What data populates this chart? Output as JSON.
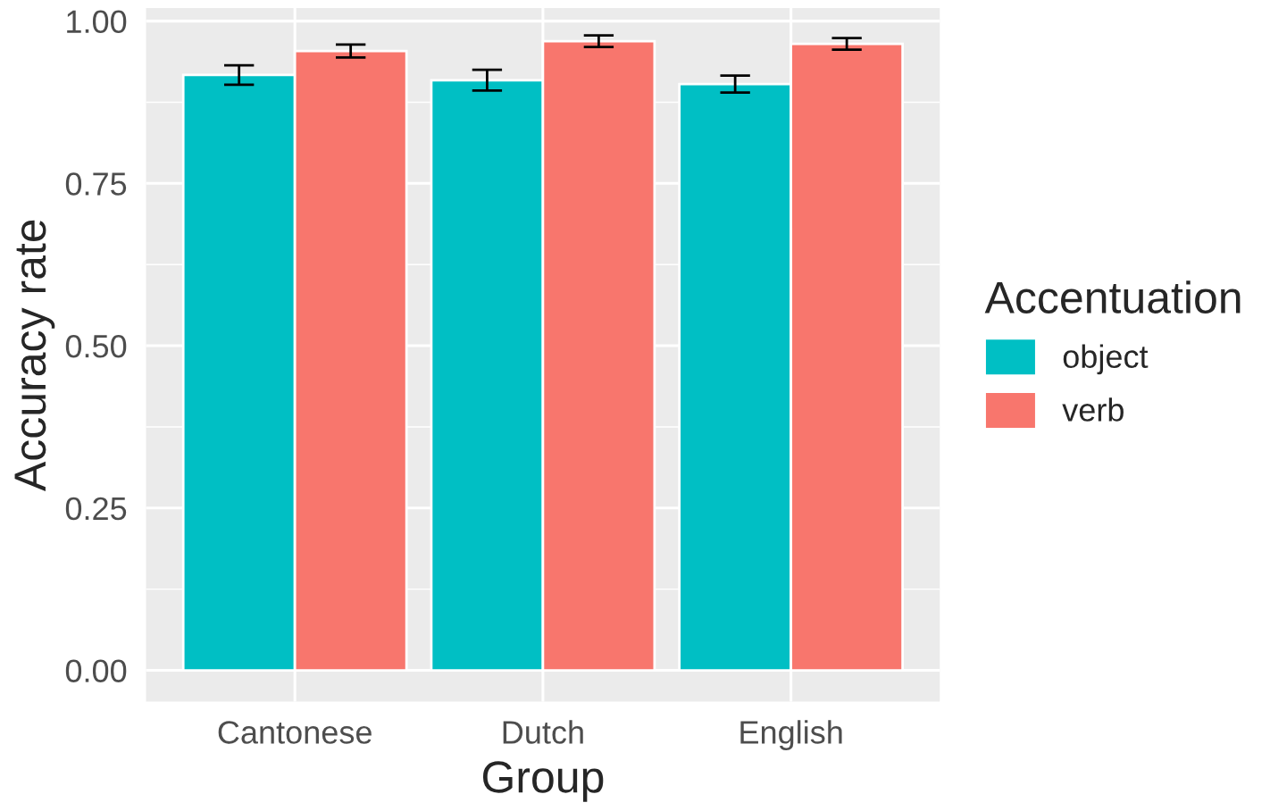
{
  "chart_data": {
    "type": "bar",
    "xlabel": "Group",
    "ylabel": "Accuracy rate",
    "legend_title": "Accentuation",
    "categories": [
      "Cantonese",
      "Dutch",
      "English"
    ],
    "series": [
      {
        "name": "object",
        "color": "#00bfc4",
        "values": [
          0.917,
          0.909,
          0.903
        ],
        "errors": [
          0.015,
          0.016,
          0.013
        ]
      },
      {
        "name": "verb",
        "color": "#f8766d",
        "values": [
          0.954,
          0.969,
          0.965
        ],
        "errors": [
          0.01,
          0.009,
          0.009
        ]
      }
    ],
    "ylim": [
      -0.048,
      1.02
    ],
    "yticks": [
      {
        "value": 0,
        "label": "0.00"
      },
      {
        "value": 0.25,
        "label": "0.25"
      },
      {
        "value": 0.5,
        "label": "0.50"
      },
      {
        "value": 0.75,
        "label": "0.75"
      },
      {
        "value": 1,
        "label": "1.00"
      }
    ],
    "grid": true,
    "legend": "right"
  }
}
